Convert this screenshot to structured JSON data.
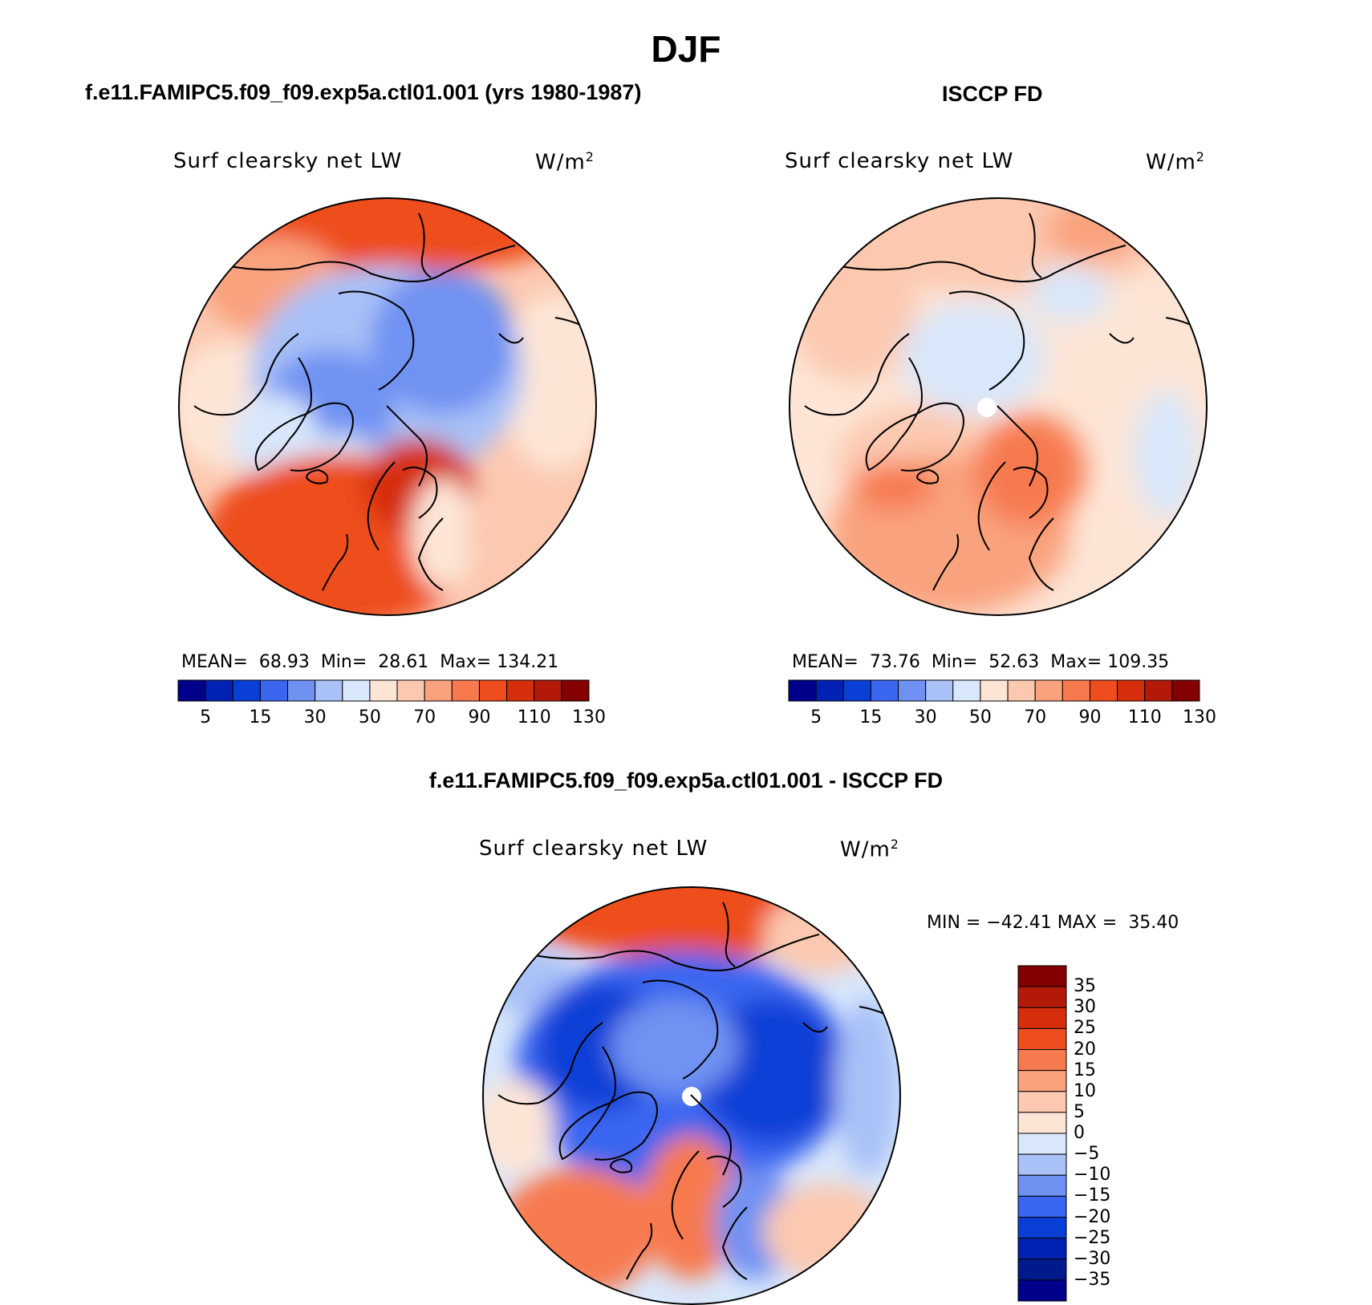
{
  "figure": {
    "title": "DJF",
    "panels": [
      {
        "id": "model",
        "title": "f.e11.FAMIPC5.f09_f09.exp5a.ctl01.001 (yrs 1980-1987)",
        "variable": "Surf clearsky net LW",
        "units": "W/m",
        "units_sup": "2",
        "stats": {
          "mean_label": "MEAN=",
          "mean": "68.93",
          "min_label": "Min=",
          "min": "28.61",
          "max_label": "Max=",
          "max": "134.21"
        }
      },
      {
        "id": "obs",
        "title": "ISCCP FD",
        "variable": "Surf clearsky net LW",
        "units": "W/m",
        "units_sup": "2",
        "stats": {
          "mean_label": "MEAN=",
          "mean": "73.76",
          "min_label": "Min=",
          "min": "52.63",
          "max_label": "Max=",
          "max": "109.35"
        }
      },
      {
        "id": "diff",
        "title": "f.e11.FAMIPC5.f09_f09.exp5a.ctl01.001 - ISCCP FD",
        "variable": "Surf clearsky net LW",
        "units": "W/m",
        "units_sup": "2",
        "stats": {
          "min_label": "MIN =",
          "min": "−42.41",
          "max_label": "MAX =",
          "max": "35.40"
        }
      }
    ],
    "colorbar_main": {
      "colors": [
        "#00008b",
        "#0022b4",
        "#0a3fd6",
        "#3a66f0",
        "#6f92f2",
        "#a9c1f7",
        "#d8e7fb",
        "#fde5d6",
        "#fcc9b0",
        "#f9a27e",
        "#f77a4f",
        "#ee4d1e",
        "#d62e0d",
        "#b21a07",
        "#840000"
      ],
      "labels": [
        "5",
        "15",
        "30",
        "50",
        "70",
        "90",
        "110",
        "130"
      ]
    },
    "colorbar_diff": {
      "colors": [
        "#840000",
        "#b21a07",
        "#d62e0d",
        "#ee4d1e",
        "#f77a4f",
        "#f9a27e",
        "#fcc9b0",
        "#fde5d6",
        "#d8e7fb",
        "#a9c1f7",
        "#6f92f2",
        "#3a66f0",
        "#0a3fd6",
        "#0022b4",
        "#001a8c",
        "#00008b"
      ],
      "labels": [
        "35",
        "30",
        "25",
        "20",
        "15",
        "10",
        "5",
        "0",
        "−5",
        "−10",
        "−15",
        "−20",
        "−25",
        "−30",
        "−35"
      ]
    }
  }
}
